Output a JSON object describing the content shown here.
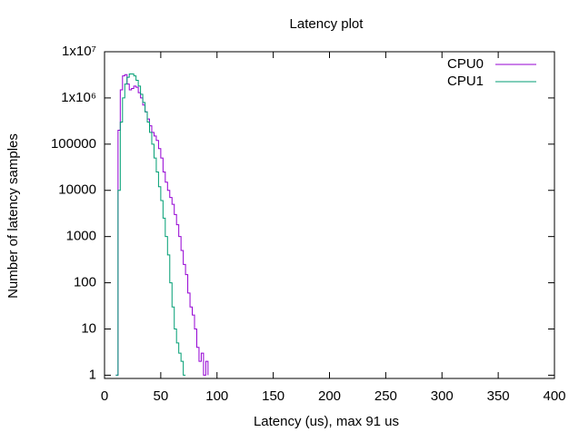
{
  "chart_data": {
    "type": "line",
    "title": "Latency plot",
    "x_label": "Latency (us), max 91 us",
    "y_label": "Number of latency samples",
    "x": [
      10,
      12,
      14,
      16,
      18,
      20,
      22,
      24,
      26,
      28,
      30,
      32,
      34,
      36,
      38,
      40,
      42,
      44,
      46,
      48,
      50,
      52,
      54,
      56,
      58,
      60,
      62,
      64,
      66,
      68,
      70,
      72,
      74,
      76,
      78,
      80,
      82,
      84,
      86,
      88,
      90,
      92
    ],
    "series": [
      {
        "name": "CPU0",
        "color": "#9400d3",
        "values": [
          1,
          200000,
          1500000,
          3000000,
          3200000,
          2000000,
          1500000,
          1600000,
          1800000,
          1700000,
          1300000,
          1000000,
          700000,
          500000,
          350000,
          250000,
          180000,
          150000,
          120000,
          80000,
          50000,
          25000,
          15000,
          10000,
          7000,
          5000,
          3000,
          1800,
          1000,
          500,
          250,
          150,
          60,
          30,
          20,
          10,
          4,
          2,
          3,
          1,
          2,
          1
        ]
      },
      {
        "name": "CPU1",
        "color": "#009e73",
        "values": [
          1,
          10000,
          300000,
          1000000,
          2000000,
          2800000,
          3300000,
          3300000,
          3000000,
          2400000,
          1800000,
          1200000,
          800000,
          500000,
          300000,
          180000,
          100000,
          50000,
          25000,
          12000,
          6000,
          2500,
          1000,
          400,
          100,
          30,
          10,
          5,
          3,
          2,
          1,
          1,
          null,
          null,
          null,
          null,
          null,
          null,
          null,
          null,
          null,
          null
        ]
      }
    ],
    "xlim": [
      0,
      400
    ],
    "xticks": [
      0,
      50,
      100,
      150,
      200,
      250,
      300,
      350,
      400
    ],
    "ylim": [
      0.85,
      10000000
    ],
    "log_y": true,
    "yticks": [
      1,
      10,
      100,
      1000,
      10000,
      100000,
      {
        "value": 1000000,
        "label": "1x10⁶"
      },
      {
        "value": 10000000,
        "label": "1x10⁷"
      }
    ],
    "legend": "top-right"
  }
}
